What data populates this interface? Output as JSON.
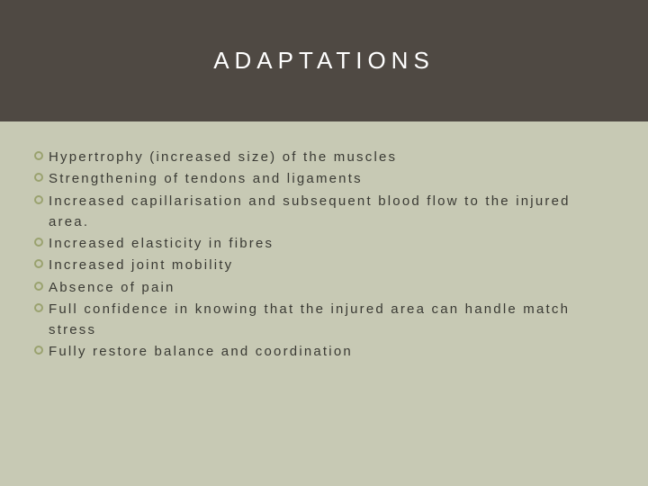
{
  "slide": {
    "title": "ADAPTATIONS",
    "title_color": "#ffffff",
    "title_fontsize": 26,
    "title_letter_spacing": 6,
    "header_background": "#4f4943",
    "body_background": "#c7c9b4",
    "bullet_marker_color": "#9aa26f",
    "text_color": "#3a3a34",
    "body_fontsize": 15,
    "body_letter_spacing": 2.2,
    "bullets": [
      "Hypertrophy (increased size) of the muscles",
      "Strengthening of tendons and ligaments",
      "Increased capillarisation and subsequent blood flow to the injured area.",
      "Increased elasticity in fibres",
      "Increased joint mobility",
      "Absence of pain",
      "Full confidence in knowing that the injured area can handle match stress",
      "Fully restore balance and coordination"
    ]
  }
}
